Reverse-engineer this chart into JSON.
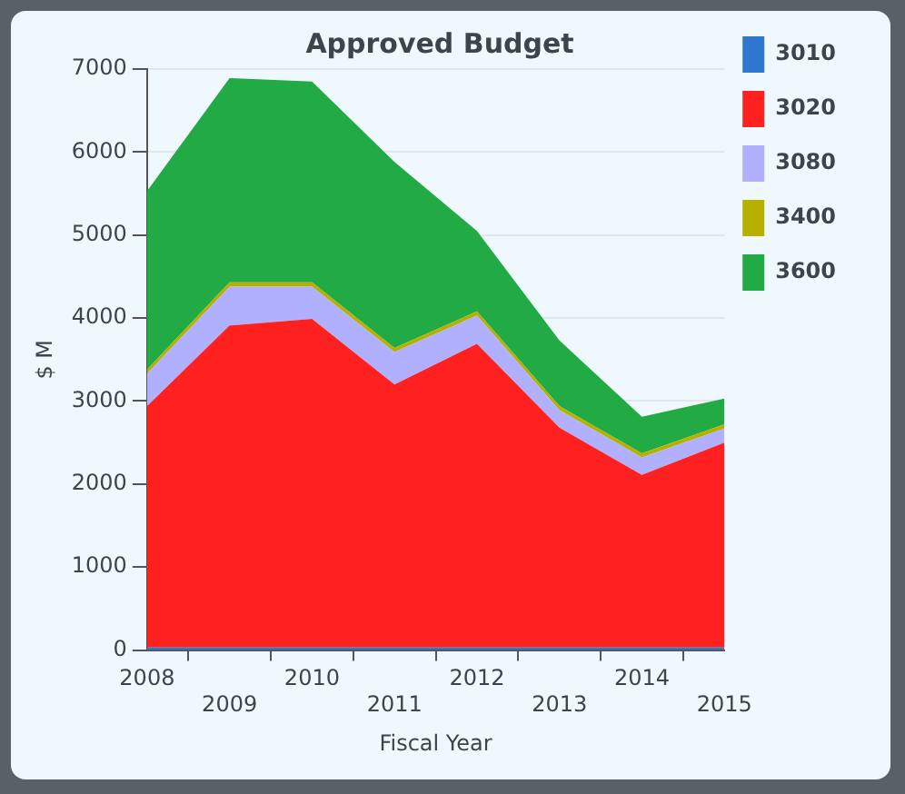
{
  "chart_data": {
    "type": "area",
    "title": "Approved Budget",
    "xlabel": "Fiscal Year",
    "ylabel": "$ M",
    "categories": [
      "2008",
      "2009",
      "2010",
      "2011",
      "2012",
      "2013",
      "2014",
      "2015"
    ],
    "series": [
      {
        "name": "3010",
        "color": "#2f78d0",
        "values": [
          30,
          30,
          30,
          30,
          30,
          30,
          30,
          30
        ]
      },
      {
        "name": "3020",
        "color": "#ff2020",
        "values": [
          2910,
          3880,
          3960,
          3170,
          3660,
          2650,
          2080,
          2470
        ]
      },
      {
        "name": "3080",
        "color": "#b0b0ff",
        "values": [
          390,
          470,
          390,
          390,
          340,
          210,
          210,
          170
        ]
      },
      {
        "name": "3400",
        "color": "#b8b000",
        "values": [
          50,
          50,
          50,
          50,
          50,
          50,
          50,
          50
        ]
      },
      {
        "name": "3600",
        "color": "#22aa44",
        "values": [
          2150,
          2460,
          2420,
          2240,
          970,
          790,
          440,
          310
        ]
      }
    ],
    "stacked": true,
    "ylim": [
      0,
      7000
    ],
    "yticks": [
      0,
      1000,
      2000,
      3000,
      4000,
      5000,
      6000,
      7000
    ],
    "grid": "y",
    "legend": "right",
    "marker": "none"
  }
}
